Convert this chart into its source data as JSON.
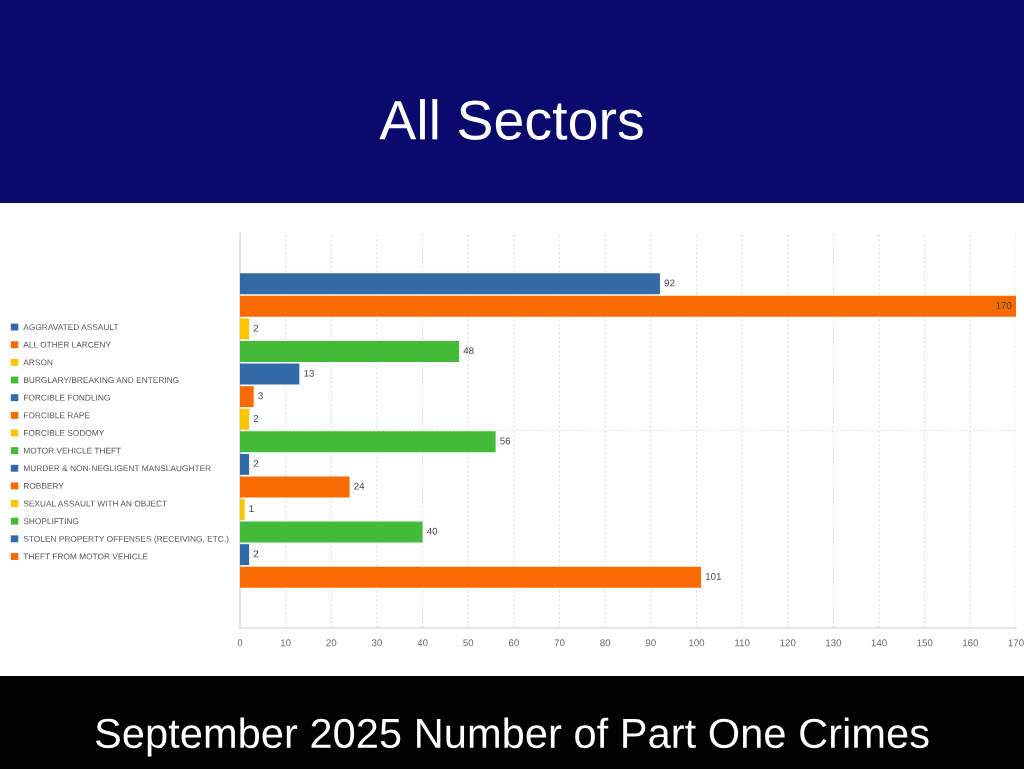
{
  "chart_data": {
    "type": "bar",
    "orientation": "horizontal",
    "title": "All Sectors",
    "subtitle": "September 2025 Number of Part One Crimes",
    "categories": [
      null
    ],
    "series": [
      {
        "name": "AGGRAVATED ASSAULT",
        "color": "#336ba8",
        "values": [
          92
        ]
      },
      {
        "name": "ALL OTHER LARCENY",
        "color": "#f96b00",
        "values": [
          170
        ]
      },
      {
        "name": "ARSON",
        "color": "#fdc400",
        "values": [
          2
        ]
      },
      {
        "name": "BURGLARY/BREAKING AND ENTERING",
        "color": "#43bb39",
        "values": [
          48
        ]
      },
      {
        "name": "FORCIBLE FONDLING",
        "color": "#336ba8",
        "values": [
          13
        ]
      },
      {
        "name": "FORCIBLE RAPE",
        "color": "#f96b00",
        "values": [
          3
        ]
      },
      {
        "name": "FORCIBLE SODOMY",
        "color": "#fdc400",
        "values": [
          2
        ]
      },
      {
        "name": "MOTOR VEHICLE THEFT",
        "color": "#43bb39",
        "values": [
          56
        ]
      },
      {
        "name": "MURDER & NON-NEGLIGENT MANSLAUGHTER",
        "color": "#336ba8",
        "values": [
          2
        ]
      },
      {
        "name": "ROBBERY",
        "color": "#f96b00",
        "values": [
          24
        ]
      },
      {
        "name": "SEXUAL ASSAULT WITH AN OBJECT",
        "color": "#fdc400",
        "values": [
          1
        ]
      },
      {
        "name": "SHOPLIFTING",
        "color": "#43bb39",
        "values": [
          40
        ]
      },
      {
        "name": "STOLEN PROPERTY OFFENSES (RECEIVING, ETC.)",
        "color": "#336ba8",
        "values": [
          2
        ]
      },
      {
        "name": "THEFT FROM MOTOR VEHICLE",
        "color": "#f96b00",
        "values": [
          101
        ]
      }
    ],
    "xlim": [
      0,
      170
    ],
    "xticks": [
      0,
      10,
      20,
      30,
      40,
      50,
      60,
      70,
      80,
      90,
      100,
      110,
      120,
      130,
      140,
      150,
      160,
      170
    ],
    "grid": true,
    "legend": "left",
    "data_labels": true
  }
}
